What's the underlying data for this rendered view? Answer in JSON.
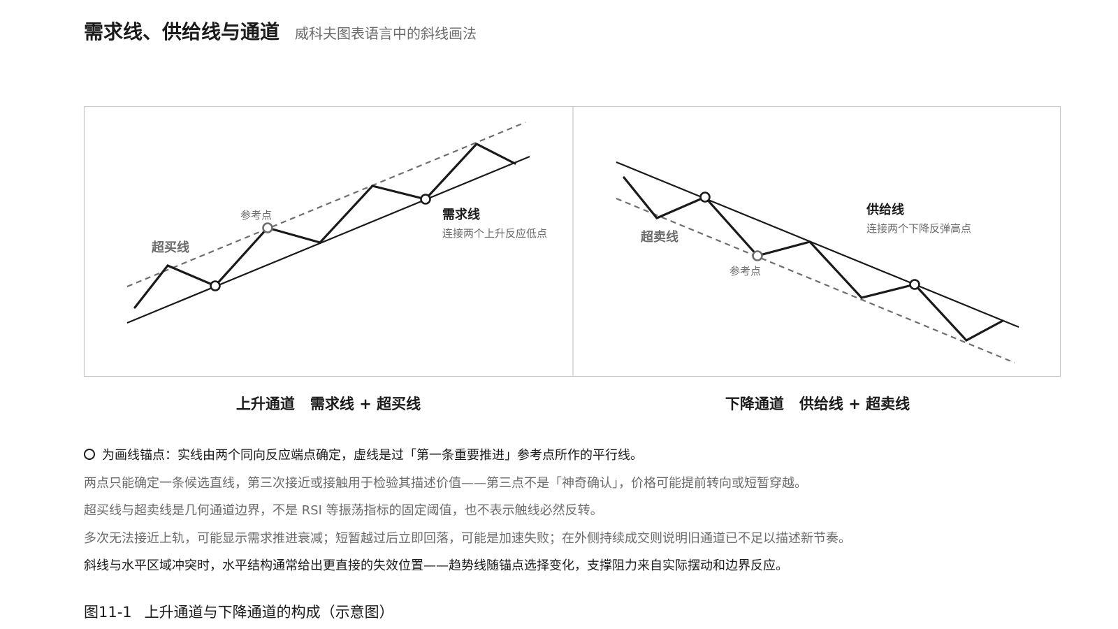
{
  "header": {
    "title": "需求线、供给线与通道",
    "subtitle": "威科夫图表语言中的斜线画法"
  },
  "panels": {
    "left": {
      "caption_a": "上升通道",
      "caption_b": "需求线 + 超买线",
      "solid_label": "需求线",
      "solid_desc": "连接两个上升反应低点",
      "dashed_label": "超买线",
      "ref_label": "参考点"
    },
    "right": {
      "caption_a": "下降通道",
      "caption_b": "供给线 + 超卖线",
      "solid_label": "供给线",
      "solid_desc": "连接两个下降反弹高点",
      "dashed_label": "超卖线",
      "ref_label": "参考点"
    }
  },
  "notes": {
    "legend": "为画线锚点：实线由两个同向反应端点确定，虚线是过「第一条重要推进」参考点所作的平行线。",
    "n1": "两点只能确定一条候选直线，第三次接近或接触用于检验其描述价值——第三点不是「神奇确认」，价格可能提前转向或短暂穿越。",
    "n2": "超买线与超卖线是几何通道边界，不是 RSI 等振荡指标的固定阈值，也不表示触线必然反转。",
    "n3": "多次无法接近上轨，可能显示需求推进衰减；短暂越过后立即回落，可能是加速失败；在外侧持续成交则说明旧通道已不足以描述新节奏。",
    "n4": "斜线与水平区域冲突时，水平结构通常给出更直接的失效位置——趋势线随锚点选择变化，支撑阻力来自实际摆动和边界反应。"
  },
  "figure_caption": {
    "number": "图11-1",
    "text": "上升通道与下降通道的构成（示意图）"
  },
  "colors": {
    "ink": "#1a1a1a",
    "gray": "#6b6b6b",
    "frame": "#c8c8c8",
    "dashed": "#6e6e6e"
  }
}
